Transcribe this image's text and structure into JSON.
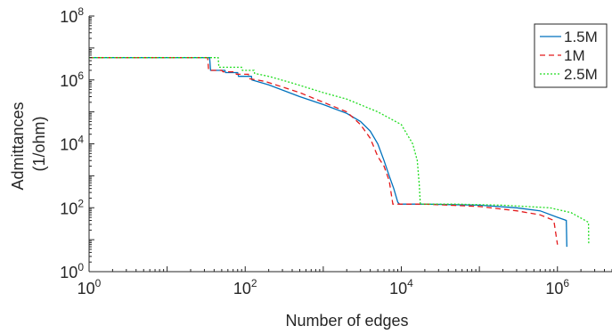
{
  "chart_data": {
    "type": "line",
    "xscale": "log",
    "yscale": "log",
    "xlabel": "Number of edges",
    "ylabel": [
      "Admittances",
      "(1/ohm)"
    ],
    "xlim": [
      1,
      5000000
    ],
    "ylim": [
      1,
      100000000
    ],
    "xticks": [
      {
        "value": 1,
        "base": "10",
        "exp": "0"
      },
      {
        "value": 100,
        "base": "10",
        "exp": "2"
      },
      {
        "value": 10000,
        "base": "10",
        "exp": "4"
      },
      {
        "value": 1000000,
        "base": "10",
        "exp": "6"
      }
    ],
    "yticks": [
      {
        "value": 1,
        "base": "10",
        "exp": "0"
      },
      {
        "value": 100,
        "base": "10",
        "exp": "2"
      },
      {
        "value": 10000,
        "base": "10",
        "exp": "4"
      },
      {
        "value": 1000000,
        "base": "10",
        "exp": "6"
      },
      {
        "value": 100000000,
        "base": "10",
        "exp": "8"
      }
    ],
    "grid": false,
    "legend_position": "top-right",
    "series": [
      {
        "name": "1.5M",
        "color": "#0072BD",
        "dash": "solid",
        "points": [
          [
            1,
            5000000
          ],
          [
            35,
            5000000
          ],
          [
            36,
            2000000
          ],
          [
            55,
            2000000
          ],
          [
            56,
            1700000
          ],
          [
            80,
            1700000
          ],
          [
            82,
            1300000
          ],
          [
            120,
            1300000
          ],
          [
            122,
            1000000
          ],
          [
            200,
            700000
          ],
          [
            500,
            300000
          ],
          [
            1000,
            170000
          ],
          [
            2000,
            90000
          ],
          [
            3000,
            50000
          ],
          [
            4000,
            25000
          ],
          [
            5000,
            10000
          ],
          [
            6000,
            3000
          ],
          [
            7000,
            1000
          ],
          [
            8000,
            400
          ],
          [
            9000,
            150
          ],
          [
            9500,
            130
          ],
          [
            20000,
            130
          ],
          [
            100000,
            120
          ],
          [
            300000,
            100
          ],
          [
            600000,
            80
          ],
          [
            1000000,
            50
          ],
          [
            1300000,
            40
          ],
          [
            1320000,
            6
          ]
        ]
      },
      {
        "name": "1M",
        "color": "#E31A1C",
        "dash": "6,4",
        "points": [
          [
            1,
            5000000
          ],
          [
            33,
            5000000
          ],
          [
            34,
            2000000
          ],
          [
            50,
            2000000
          ],
          [
            52,
            1800000
          ],
          [
            75,
            1800000
          ],
          [
            77,
            1500000
          ],
          [
            110,
            1500000
          ],
          [
            112,
            1100000
          ],
          [
            180,
            900000
          ],
          [
            500,
            400000
          ],
          [
            1000,
            200000
          ],
          [
            2000,
            100000
          ],
          [
            3000,
            40000
          ],
          [
            4000,
            15000
          ],
          [
            5000,
            4000
          ],
          [
            6000,
            2000
          ],
          [
            7000,
            700
          ],
          [
            7800,
            130
          ],
          [
            20000,
            130
          ],
          [
            100000,
            110
          ],
          [
            300000,
            80
          ],
          [
            600000,
            60
          ],
          [
            900000,
            40
          ],
          [
            1000000,
            7
          ]
        ]
      },
      {
        "name": "2.5M",
        "color": "#22DD22",
        "dash": "2,2",
        "points": [
          [
            1,
            5000000
          ],
          [
            45,
            5000000
          ],
          [
            46,
            2500000
          ],
          [
            90,
            2500000
          ],
          [
            92,
            2000000
          ],
          [
            130,
            2000000
          ],
          [
            132,
            1600000
          ],
          [
            200,
            1300000
          ],
          [
            400,
            800000
          ],
          [
            1000,
            400000
          ],
          [
            2000,
            250000
          ],
          [
            5000,
            100000
          ],
          [
            10000,
            40000
          ],
          [
            14000,
            10000
          ],
          [
            16000,
            3000
          ],
          [
            17000,
            500
          ],
          [
            17500,
            130
          ],
          [
            50000,
            130
          ],
          [
            200000,
            120
          ],
          [
            800000,
            100
          ],
          [
            1500000,
            70
          ],
          [
            2500000,
            35
          ],
          [
            2520000,
            7
          ]
        ]
      }
    ]
  }
}
